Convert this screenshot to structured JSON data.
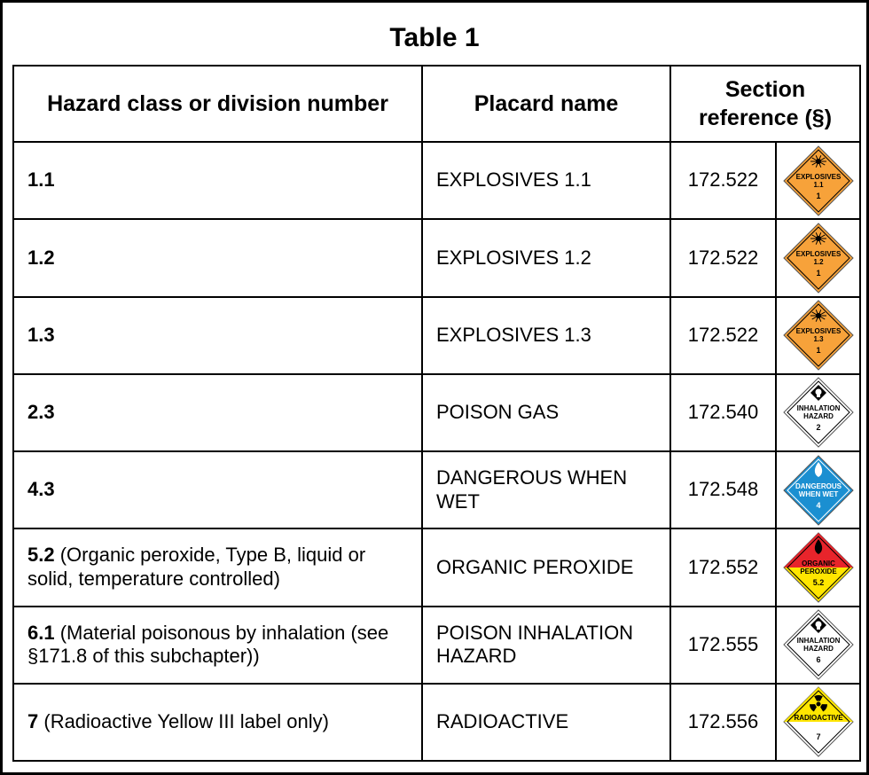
{
  "title": "Table 1",
  "headers": {
    "hazard": "Hazard class or division number",
    "placard": "Placard name",
    "section": "Section reference (§)"
  },
  "rows": [
    {
      "num": "1.1",
      "desc": "",
      "placard": "EXPLOSIVES 1.1",
      "section": "172.522",
      "icon": {
        "name": "explosives-1-1-placard-icon",
        "fill": "#f7a23a",
        "lines": [
          "EXPLOSIVES",
          "1.1",
          "1"
        ]
      }
    },
    {
      "num": "1.2",
      "desc": "",
      "placard": "EXPLOSIVES 1.2",
      "section": "172.522",
      "icon": {
        "name": "explosives-1-2-placard-icon",
        "fill": "#f7a23a",
        "lines": [
          "EXPLOSIVES",
          "1.2",
          "1"
        ]
      }
    },
    {
      "num": "1.3",
      "desc": "",
      "placard": "EXPLOSIVES 1.3",
      "section": "172.522",
      "icon": {
        "name": "explosives-1-3-placard-icon",
        "fill": "#f7a23a",
        "lines": [
          "EXPLOSIVES",
          "1.3",
          "1"
        ]
      }
    },
    {
      "num": "2.3",
      "desc": "",
      "placard": "POISON GAS",
      "section": "172.540",
      "icon": {
        "name": "inhalation-hazard-2-placard-icon",
        "fill": "#ffffff",
        "lines": [
          "INHALATION",
          "HAZARD",
          "2"
        ]
      }
    },
    {
      "num": "4.3",
      "desc": "",
      "placard": "DANGEROUS WHEN WET",
      "section": "172.548",
      "icon": {
        "name": "dangerous-when-wet-placard-icon",
        "fill": "#1b8fd1",
        "lines": [
          "DANGEROUS",
          "WHEN WET",
          "4"
        ]
      }
    },
    {
      "num": "5.2",
      "desc": " (Organic peroxide, Type B, liquid or solid, temperature controlled)",
      "placard": "ORGANIC PEROXIDE",
      "section": "172.552",
      "icon": {
        "name": "organic-peroxide-placard-icon",
        "fill": "#e8242b",
        "fill2": "#ffe600",
        "lines": [
          "ORGANIC",
          "PEROXIDE",
          "5.2"
        ]
      }
    },
    {
      "num": "6.1",
      "desc": " (Material poisonous by inhalation (see §171.8 of this subchapter))",
      "placard": "POISON INHALATION HAZARD",
      "section": "172.555",
      "icon": {
        "name": "inhalation-hazard-6-placard-icon",
        "fill": "#ffffff",
        "lines": [
          "INHALATION",
          "HAZARD",
          "6"
        ]
      }
    },
    {
      "num": "7",
      "desc": " (Radioactive Yellow III label only)",
      "placard": "RADIOACTIVE",
      "section": "172.556",
      "icon": {
        "name": "radioactive-placard-icon",
        "fill": "#ffe600",
        "fill2": "#ffffff",
        "lines": [
          "RADIOACTIVE",
          "",
          "7"
        ]
      }
    }
  ]
}
